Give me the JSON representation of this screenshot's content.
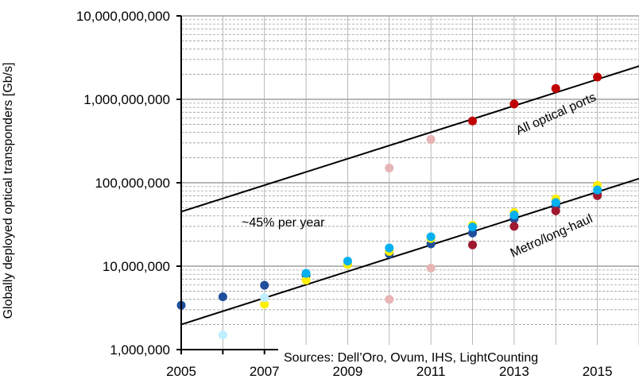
{
  "chart_data": {
    "type": "scatter",
    "title": "",
    "xlabel": "",
    "ylabel": "Globally deployed optical transponders [Gb/s]",
    "xlim": [
      2005,
      2016
    ],
    "ylim": [
      1000000,
      10000000000
    ],
    "y_scale": "log",
    "x_ticks": [
      2005,
      2007,
      2009,
      2011,
      2013,
      2015
    ],
    "x_tick_labels": [
      "2005",
      "2007",
      "2009",
      "2011",
      "2013",
      "2015"
    ],
    "y_ticks": [
      1000000,
      10000000,
      100000000,
      1000000000,
      10000000000
    ],
    "y_tick_labels": [
      "1,000,000",
      "10,000,000",
      "100,000,000",
      "1,000,000,000",
      "10,000,000,000"
    ],
    "grid": true,
    "series": [
      {
        "color": "#c00000",
        "points": [
          [
            2012,
            550000000
          ],
          [
            2013,
            880000000
          ],
          [
            2014,
            1350000000
          ],
          [
            2015,
            1850000000
          ]
        ]
      },
      {
        "color": "#e8b4b4",
        "points": [
          [
            2010,
            4000000
          ],
          [
            2010,
            150000000
          ],
          [
            2011,
            9500000
          ],
          [
            2011,
            330000000
          ]
        ]
      },
      {
        "color": "#1f4e9a",
        "points": [
          [
            2005,
            3400000
          ],
          [
            2006,
            4300000
          ],
          [
            2007,
            5900000
          ],
          [
            2008,
            7800000
          ],
          [
            2009,
            10500000
          ],
          [
            2010,
            14000000
          ],
          [
            2011,
            18500000
          ],
          [
            2012,
            25000000
          ],
          [
            2013,
            37000000
          ],
          [
            2014,
            52000000
          ],
          [
            2015,
            73000000
          ]
        ]
      },
      {
        "color": "#a01830",
        "points": [
          [
            2012,
            18000000
          ],
          [
            2013,
            30000000
          ],
          [
            2014,
            46000000
          ],
          [
            2015,
            70000000
          ]
        ]
      },
      {
        "color": "#ffee00",
        "points": [
          [
            2007,
            3500000
          ],
          [
            2008,
            6800000
          ],
          [
            2009,
            10500000
          ],
          [
            2010,
            15000000
          ],
          [
            2011,
            21500000
          ],
          [
            2012,
            31000000
          ],
          [
            2013,
            44000000
          ],
          [
            2014,
            64000000
          ],
          [
            2015,
            93000000
          ]
        ]
      },
      {
        "color": "#00b0f0",
        "points": [
          [
            2008,
            8200000
          ],
          [
            2009,
            11500000
          ],
          [
            2010,
            16500000
          ],
          [
            2011,
            22500000
          ],
          [
            2012,
            29500000
          ],
          [
            2013,
            41000000
          ],
          [
            2014,
            58000000
          ],
          [
            2015,
            82000000
          ]
        ]
      },
      {
        "color": "#bfeeff",
        "points": [
          [
            2006,
            1500000
          ],
          [
            2007,
            4200000
          ]
        ]
      }
    ],
    "trend_lines": [
      {
        "label": "All optical ports",
        "x": [
          2005,
          2016
        ],
        "y": [
          45000000,
          2500000000
        ]
      },
      {
        "label": "Metro/long-haul",
        "x": [
          2005,
          2016
        ],
        "y": [
          2000000,
          112000000
        ]
      }
    ],
    "annotations": [
      {
        "text": "~45% per year"
      },
      {
        "text": "Sources: Dell’Oro, Ovum, IHS, LightCounting"
      }
    ]
  }
}
